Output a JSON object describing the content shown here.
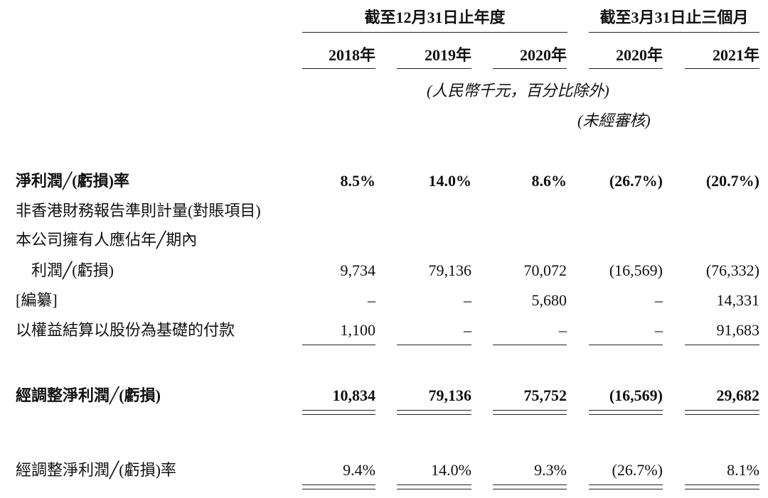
{
  "header": {
    "groups": [
      "截至12月31日止年度",
      "截至3月31日止三個月"
    ],
    "years": [
      "2018年",
      "2019年",
      "2020年",
      "2020年",
      "2021年"
    ],
    "unit_note": "(人民幣千元，百分比除外)",
    "audit_note": "(未經審核)"
  },
  "rows": [
    {
      "label": "淨利潤╱(虧損)率",
      "values": [
        "8.5%",
        "14.0%",
        "8.6%",
        "(26.7%)",
        "(20.7%)"
      ]
    },
    {
      "label": "非香港財務報告準則計量(對賬項目)"
    },
    {
      "label": "本公司擁有人應佔年╱期內"
    },
    {
      "label": "利潤╱(虧損)",
      "values": [
        "9,734",
        "79,136",
        "70,072",
        "(16,569)",
        "(76,332)"
      ]
    },
    {
      "label": "[編纂]",
      "values": [
        "–",
        "–",
        "5,680",
        "–",
        "14,331"
      ]
    },
    {
      "label": "以權益結算以股份為基礎的付款",
      "values": [
        "1,100",
        "–",
        "–",
        "–",
        "91,683"
      ]
    },
    {
      "label": "經調整淨利潤╱(虧損)",
      "values": [
        "10,834",
        "79,136",
        "75,752",
        "(16,569)",
        "29,682"
      ]
    },
    {
      "label": "經調整淨利潤╱(虧損)率",
      "values": [
        "9.4%",
        "14.0%",
        "9.3%",
        "(26.7%)",
        "8.1%"
      ]
    }
  ]
}
